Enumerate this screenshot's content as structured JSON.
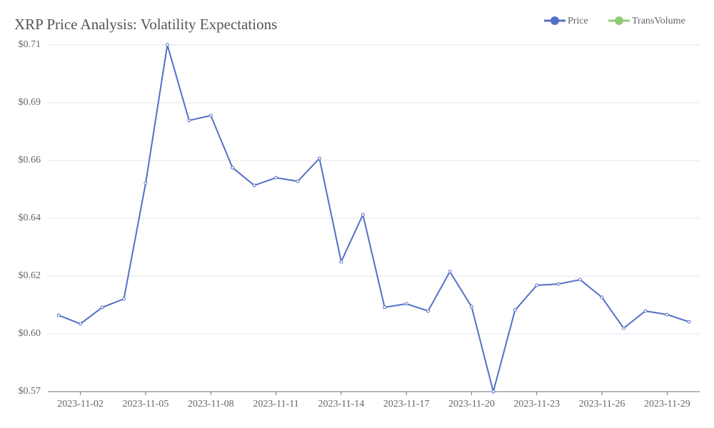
{
  "chart_data": {
    "type": "line",
    "title": "XRP Price Analysis: Volatility Expectations",
    "categories": [
      null,
      "2023-11-02",
      null,
      null,
      "2023-11-05",
      null,
      null,
      "2023-11-08",
      null,
      null,
      "2023-11-11",
      null,
      null,
      "2023-11-14",
      null,
      null,
      "2023-11-17",
      null,
      null,
      "2023-11-20",
      null,
      null,
      "2023-11-23",
      null,
      null,
      "2023-11-26",
      null,
      null,
      "2023-11-29",
      null
    ],
    "series": [
      {
        "name": "Price",
        "color": "#5470c6",
        "values": [
          0.6042,
          0.6009,
          0.6073,
          0.6106,
          0.6556,
          0.7095,
          0.6801,
          0.682,
          0.6617,
          0.6548,
          0.6578,
          0.6564,
          0.6653,
          0.6251,
          0.6434,
          0.6073,
          0.6087,
          0.6059,
          0.6212,
          0.6076,
          0.5745,
          0.6062,
          0.6159,
          0.6164,
          0.6181,
          0.6112,
          0.5992,
          0.6059,
          0.6045,
          0.6017
        ]
      },
      {
        "name": "TransVolume",
        "color": "#91cc75",
        "values": [
          null,
          null,
          null,
          null,
          null,
          null,
          null,
          null,
          null,
          null,
          null,
          null,
          null,
          null,
          null,
          null,
          null,
          null,
          null,
          null,
          null,
          null,
          null,
          null,
          null,
          null,
          null,
          null,
          null,
          null
        ]
      }
    ],
    "ylim": [
      0.5745,
      0.7095
    ],
    "yticks": [
      {
        "value": 0.5745,
        "label": "$0.57"
      },
      {
        "value": 0.597,
        "label": "$0.60"
      },
      {
        "value": 0.6195,
        "label": "$0.62"
      },
      {
        "value": 0.642,
        "label": "$0.64"
      },
      {
        "value": 0.6645,
        "label": "$0.66"
      },
      {
        "value": 0.687,
        "label": "$0.69"
      },
      {
        "value": 0.7095,
        "label": "$0.71"
      }
    ],
    "grid": true,
    "legend": "top-right"
  }
}
